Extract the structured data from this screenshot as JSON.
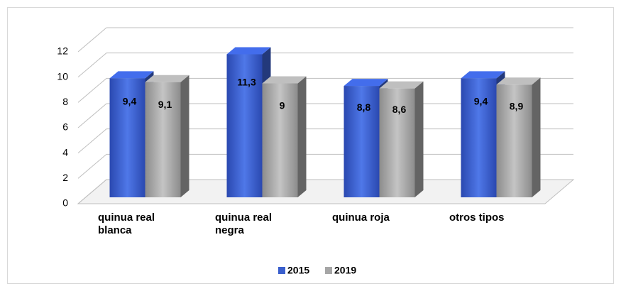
{
  "chart_data": {
    "type": "bar",
    "categories": [
      "quinua real blanca",
      "quinua real negra",
      "quinua roja",
      "otros tipos"
    ],
    "series": [
      {
        "name": "2015",
        "color": "#3a5fcd",
        "values": [
          9.4,
          11.3,
          8.8,
          9.4
        ],
        "value_labels": [
          "9,4",
          "11,3",
          "8,8",
          "9,4"
        ]
      },
      {
        "name": "2019",
        "color": "#a6a6a6",
        "values": [
          9.1,
          9,
          8.6,
          8.9
        ],
        "value_labels": [
          "9,1",
          "9",
          "8,6",
          "8,9"
        ]
      }
    ],
    "ylim": [
      0,
      12
    ],
    "yticks": [
      0,
      2,
      4,
      6,
      8,
      10,
      12
    ],
    "grid": true,
    "legend": "bottom"
  }
}
